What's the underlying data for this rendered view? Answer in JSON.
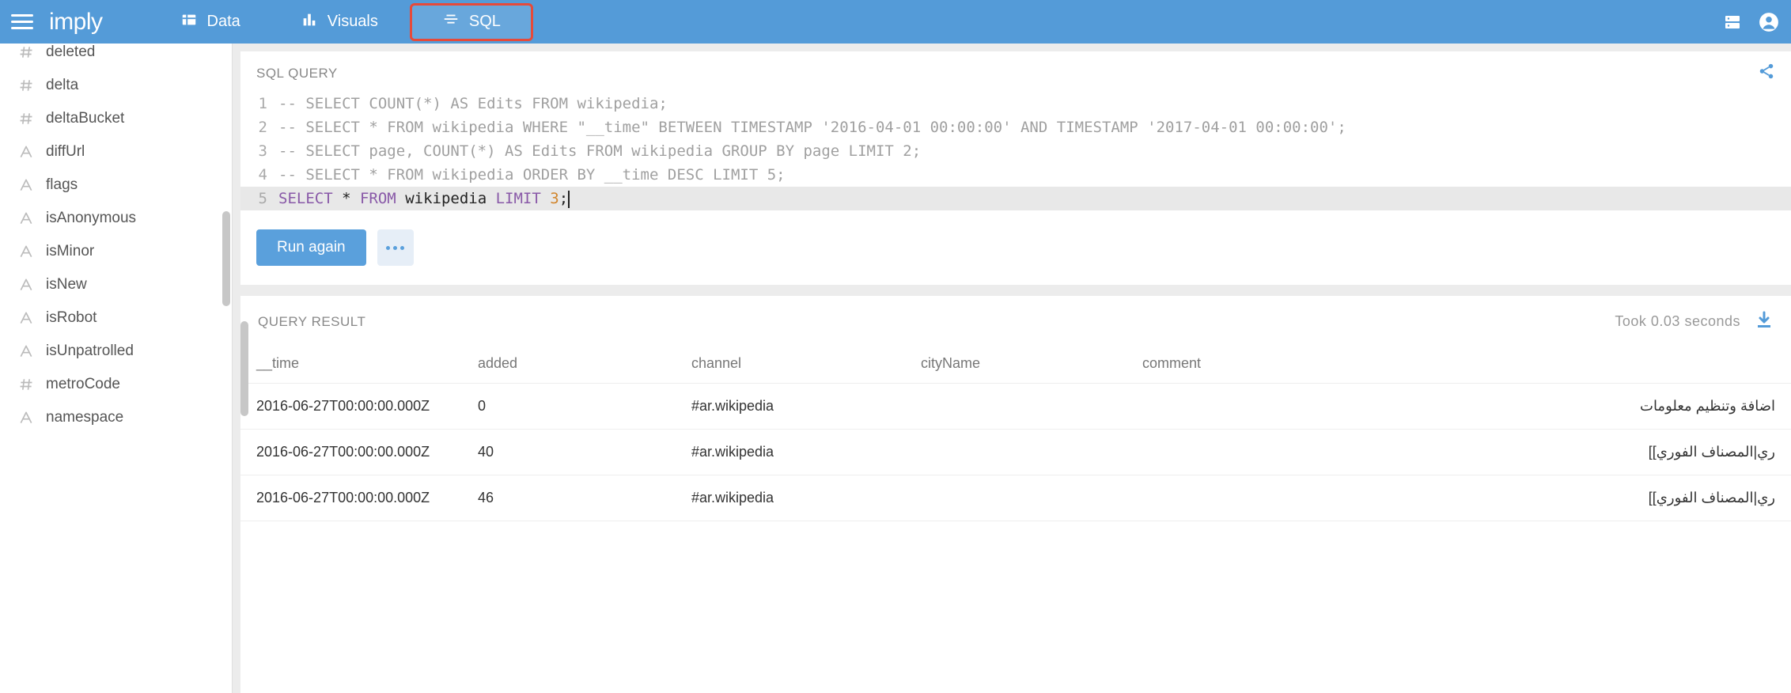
{
  "colors": {
    "brand": "#549bd8",
    "highlight_border": "#e64a3a",
    "panel_bg": "#ffffff",
    "body_bg": "#ececec",
    "muted_text": "#888888",
    "icon_muted": "#bbbbbb",
    "btn_run_bg": "#5aa0dc",
    "btn_more_bg": "#e6eef7"
  },
  "nav": {
    "logo": "imply",
    "tabs": [
      {
        "label": "Data",
        "icon": "table-icon",
        "active": false
      },
      {
        "label": "Visuals",
        "icon": "bars-icon",
        "active": false
      },
      {
        "label": "SQL",
        "icon": "lines-icon",
        "active": true,
        "highlighted": true
      }
    ]
  },
  "sidebar": {
    "items": [
      {
        "label": "deleted",
        "type": "hash"
      },
      {
        "label": "delta",
        "type": "hash"
      },
      {
        "label": "deltaBucket",
        "type": "hash"
      },
      {
        "label": "diffUrl",
        "type": "text"
      },
      {
        "label": "flags",
        "type": "text"
      },
      {
        "label": "isAnonymous",
        "type": "text"
      },
      {
        "label": "isMinor",
        "type": "text"
      },
      {
        "label": "isNew",
        "type": "text"
      },
      {
        "label": "isRobot",
        "type": "text"
      },
      {
        "label": "isUnpatrolled",
        "type": "text"
      },
      {
        "label": "metroCode",
        "type": "hash"
      },
      {
        "label": "namespace",
        "type": "text"
      }
    ]
  },
  "query_panel": {
    "title": "SQL QUERY",
    "lines": [
      "-- SELECT COUNT(*) AS Edits FROM wikipedia;",
      "-- SELECT * FROM wikipedia WHERE \"__time\" BETWEEN TIMESTAMP '2016-04-01 00:00:00' AND TIMESTAMP '2017-04-01 00:00:00';",
      "-- SELECT page, COUNT(*) AS Edits FROM wikipedia GROUP BY page LIMIT 2;",
      "-- SELECT * FROM wikipedia ORDER BY __time DESC LIMIT 5;",
      "SELECT * FROM wikipedia LIMIT 3;"
    ],
    "active_line": 5,
    "run_label": "Run again"
  },
  "result_panel": {
    "title": "QUERY RESULT",
    "timing": "Took 0.03 seconds",
    "columns": [
      "__time",
      "added",
      "channel",
      "cityName",
      "comment"
    ],
    "rows": [
      {
        "__time": "2016-06-27T00:00:00.000Z",
        "added": "0",
        "channel": "#ar.wikipedia",
        "cityName": "",
        "comment": "اضافة وتنظيم معلومات"
      },
      {
        "__time": "2016-06-27T00:00:00.000Z",
        "added": "40",
        "channel": "#ar.wikipedia",
        "cityName": "",
        "comment": "ري|المصناف الفوري]]"
      },
      {
        "__time": "2016-06-27T00:00:00.000Z",
        "added": "46",
        "channel": "#ar.wikipedia",
        "cityName": "",
        "comment": "ري|المصناف الفوري]]"
      }
    ]
  }
}
